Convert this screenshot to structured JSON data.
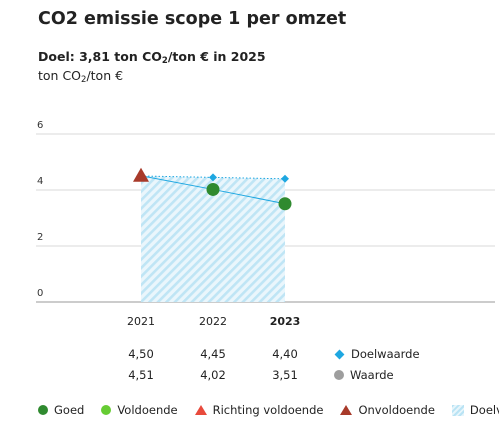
{
  "header": {
    "title": "CO2 emissie scope 1 per omzet",
    "goal_prefix": "Doel: 3,81 ton CO",
    "goal_sub": "2",
    "goal_suffix": "/ton € in 2025",
    "unit_prefix": "ton CO",
    "unit_sub": "2",
    "unit_suffix": "/ton €"
  },
  "chart_data": {
    "type": "line",
    "x": [
      "2021",
      "2022",
      "2023"
    ],
    "ylim": [
      0,
      6
    ],
    "yticks": [
      "0",
      "2",
      "4",
      "6"
    ],
    "grid": true,
    "series": [
      {
        "name": "Doelwaarde",
        "values": [
          4.5,
          4.45,
          4.4
        ],
        "labels": [
          "4,50",
          "4,45",
          "4,40"
        ],
        "color": "#1ea7e1",
        "marker": "diamond",
        "line": "dotted"
      },
      {
        "name": "Waarde",
        "values": [
          4.51,
          4.02,
          3.51
        ],
        "labels": [
          "4,51",
          "4,02",
          "3,51"
        ],
        "color": "#1ea7e1",
        "point_status": [
          "Onvoldoende",
          "Goed",
          "Goed"
        ]
      }
    ],
    "target_area": {
      "name": "Doelvlak",
      "from": "2021",
      "to": "2023"
    },
    "bold_category": "2023"
  },
  "legend": {
    "series_items": [
      {
        "label": "Doelwaarde",
        "icon": "diamond-icon",
        "color": "#1ea7e1"
      },
      {
        "label": "Waarde",
        "icon": "circle-icon",
        "color": "#9e9e9e"
      }
    ],
    "status_items": [
      {
        "label": "Goed",
        "icon": "circle-icon",
        "color": "#2f8a2f"
      },
      {
        "label": "Voldoende",
        "icon": "circle-icon",
        "color": "#66cc33"
      },
      {
        "label": "Richting voldoende",
        "icon": "triangle-icon",
        "color": "#e84a3c"
      },
      {
        "label": "Onvoldoende",
        "icon": "triangle-icon",
        "color": "#a83a2a"
      },
      {
        "label": "Doelvlak",
        "icon": "hatch-icon",
        "color": "#b9e3f4"
      }
    ]
  }
}
